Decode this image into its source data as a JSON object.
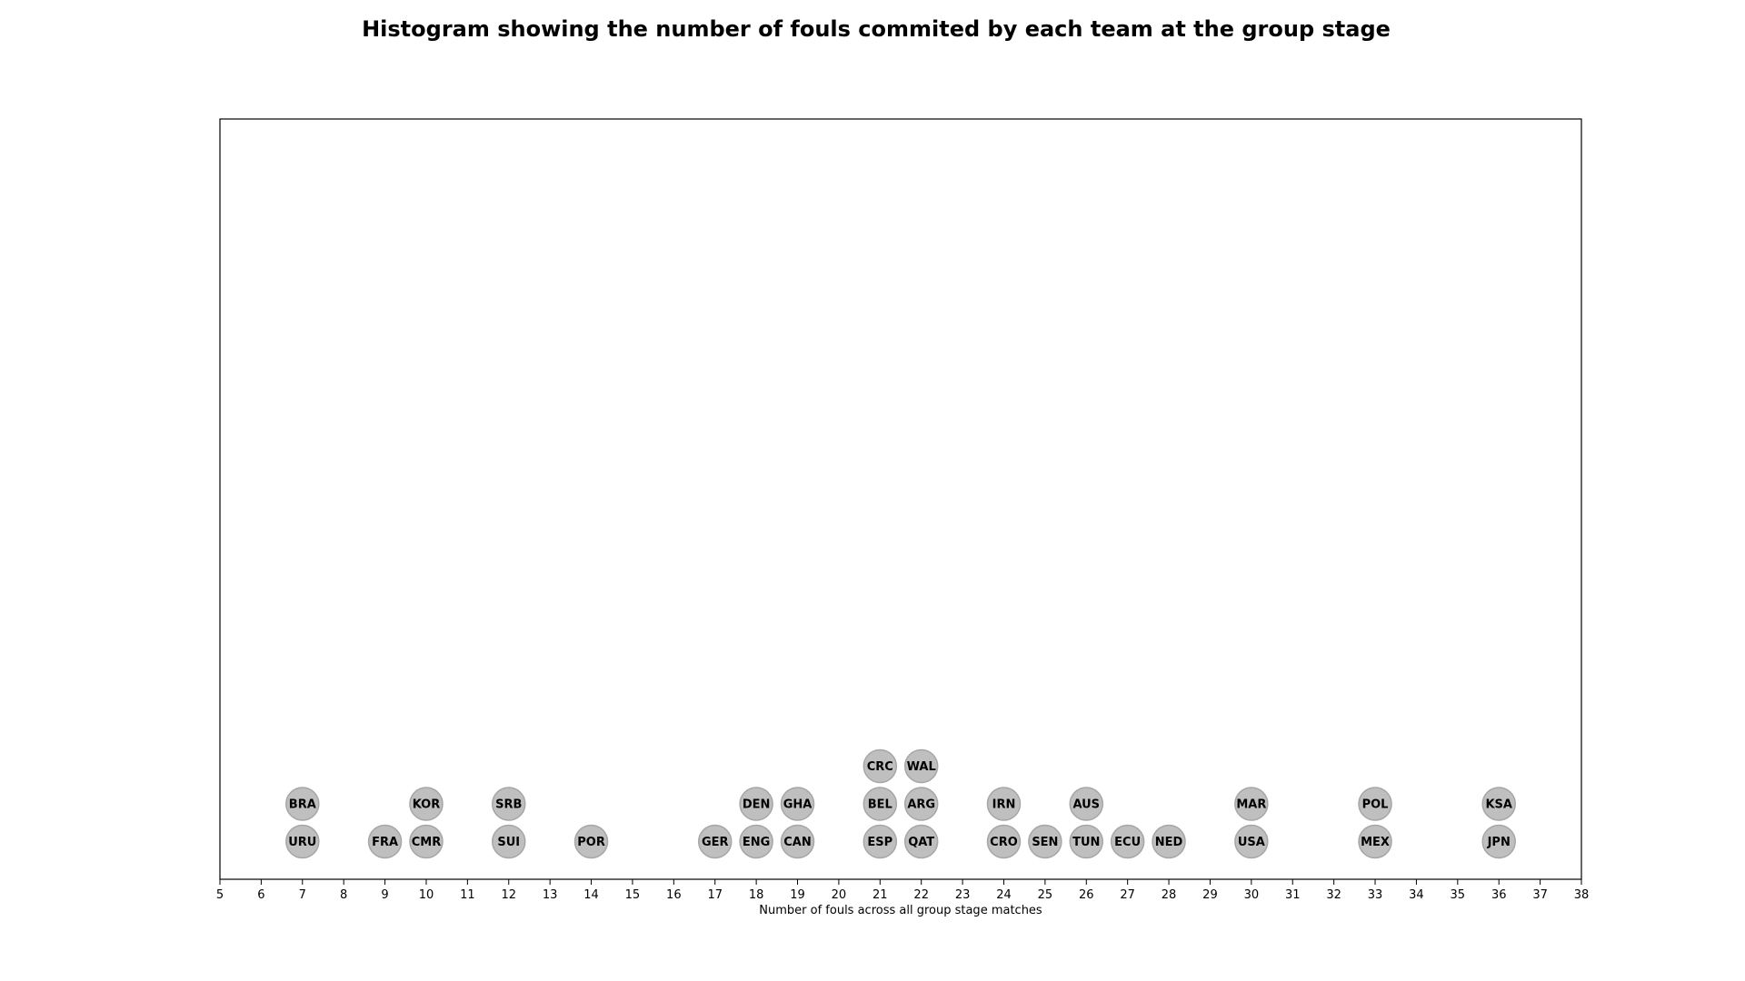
{
  "chart_data": {
    "type": "scatter",
    "title": "Histogram showing the number of fouls commited by each team at the group stage",
    "xlabel": "Number of fouls across all group stage matches",
    "ylabel": "",
    "xlim": [
      5,
      38
    ],
    "x_ticks": [
      5,
      6,
      7,
      8,
      9,
      10,
      11,
      12,
      13,
      14,
      15,
      16,
      17,
      18,
      19,
      20,
      21,
      22,
      23,
      24,
      25,
      26,
      27,
      28,
      29,
      30,
      31,
      32,
      33,
      34,
      35,
      36,
      37,
      38
    ],
    "grid": false,
    "marker_color": "#bfbfbf",
    "marker_edge_color": "#a6a6a6",
    "points": [
      {
        "team": "URU",
        "fouls": 7,
        "stack": 1
      },
      {
        "team": "BRA",
        "fouls": 7,
        "stack": 2
      },
      {
        "team": "FRA",
        "fouls": 9,
        "stack": 1
      },
      {
        "team": "CMR",
        "fouls": 10,
        "stack": 1
      },
      {
        "team": "KOR",
        "fouls": 10,
        "stack": 2
      },
      {
        "team": "SUI",
        "fouls": 12,
        "stack": 1
      },
      {
        "team": "SRB",
        "fouls": 12,
        "stack": 2
      },
      {
        "team": "POR",
        "fouls": 14,
        "stack": 1
      },
      {
        "team": "GER",
        "fouls": 17,
        "stack": 1
      },
      {
        "team": "ENG",
        "fouls": 18,
        "stack": 1
      },
      {
        "team": "DEN",
        "fouls": 18,
        "stack": 2
      },
      {
        "team": "CAN",
        "fouls": 19,
        "stack": 1
      },
      {
        "team": "GHA",
        "fouls": 19,
        "stack": 2
      },
      {
        "team": "ESP",
        "fouls": 21,
        "stack": 1
      },
      {
        "team": "BEL",
        "fouls": 21,
        "stack": 2
      },
      {
        "team": "CRC",
        "fouls": 21,
        "stack": 3
      },
      {
        "team": "QAT",
        "fouls": 22,
        "stack": 1
      },
      {
        "team": "ARG",
        "fouls": 22,
        "stack": 2
      },
      {
        "team": "WAL",
        "fouls": 22,
        "stack": 3
      },
      {
        "team": "CRO",
        "fouls": 24,
        "stack": 1
      },
      {
        "team": "IRN",
        "fouls": 24,
        "stack": 2
      },
      {
        "team": "SEN",
        "fouls": 25,
        "stack": 1
      },
      {
        "team": "TUN",
        "fouls": 26,
        "stack": 1
      },
      {
        "team": "AUS",
        "fouls": 26,
        "stack": 2
      },
      {
        "team": "ECU",
        "fouls": 27,
        "stack": 1
      },
      {
        "team": "NED",
        "fouls": 28,
        "stack": 1
      },
      {
        "team": "USA",
        "fouls": 30,
        "stack": 1
      },
      {
        "team": "MAR",
        "fouls": 30,
        "stack": 2
      },
      {
        "team": "MEX",
        "fouls": 33,
        "stack": 1
      },
      {
        "team": "POL",
        "fouls": 33,
        "stack": 2
      },
      {
        "team": "JPN",
        "fouls": 36,
        "stack": 1
      },
      {
        "team": "KSA",
        "fouls": 36,
        "stack": 2
      }
    ]
  }
}
